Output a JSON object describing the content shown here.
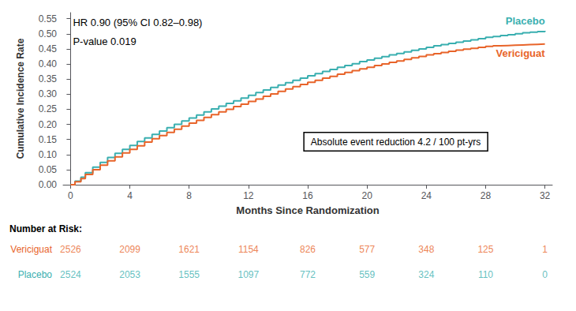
{
  "chart_data": {
    "type": "step",
    "xlabel": "Months Since Randomization",
    "ylabel": "Cumulative Incidence Rate",
    "xlim": [
      -0.5,
      32.5
    ],
    "ylim": [
      0.0,
      0.57
    ],
    "xticks": [
      0,
      4,
      8,
      12,
      16,
      20,
      24,
      28,
      32
    ],
    "yticks": [
      {
        "value": 0.0,
        "label": "0.00"
      },
      {
        "value": 0.05,
        "label": "0.05"
      },
      {
        "value": 0.1,
        "label": "0.10"
      },
      {
        "value": 0.15,
        "label": "0.15"
      },
      {
        "value": 0.2,
        "label": "0.20"
      },
      {
        "value": 0.25,
        "label": "0.25"
      },
      {
        "value": 0.3,
        "label": "0.30"
      },
      {
        "value": 0.35,
        "label": "0.35"
      },
      {
        "value": 0.4,
        "label": "0.40"
      },
      {
        "value": 0.45,
        "label": "0.45"
      },
      {
        "value": 0.5,
        "label": "0.50"
      },
      {
        "value": 0.55,
        "label": "0.55"
      }
    ],
    "grid": false,
    "annotations": [
      "HR 0.90 (95% CI 0.82–0.98)",
      "P-value 0.019",
      "Absolute event reduction 4.2 / 100 pt-yrs"
    ],
    "at_risk_label": "Number at Risk:",
    "at_risk_x": [
      0,
      4,
      8,
      12,
      16,
      20,
      24,
      28,
      32
    ],
    "series": [
      {
        "name": "Placebo",
        "color": "#3AAFB0",
        "x": [
          0.0,
          0.3,
          0.7,
          1.0,
          1.5,
          2.0,
          2.5,
          3.0,
          3.5,
          4.0,
          4.5,
          5.0,
          5.5,
          6.0,
          6.5,
          7.0,
          7.5,
          8.0,
          8.5,
          9.0,
          9.5,
          10.0,
          10.5,
          11.0,
          11.5,
          12.0,
          12.5,
          13.0,
          13.5,
          14.0,
          14.5,
          15.0,
          15.5,
          16.0,
          16.5,
          17.0,
          17.5,
          18.0,
          18.5,
          19.0,
          19.5,
          20.0,
          20.5,
          21.0,
          21.5,
          22.0,
          22.5,
          23.0,
          23.5,
          24.0,
          24.5,
          25.0,
          25.5,
          26.0,
          26.5,
          27.0,
          27.5,
          28.0,
          28.5,
          29.0,
          29.5,
          30.0,
          30.5,
          31.0,
          31.5,
          32.0
        ],
        "values": [
          0.0,
          0.012,
          0.025,
          0.04,
          0.058,
          0.074,
          0.09,
          0.104,
          0.117,
          0.13,
          0.143,
          0.155,
          0.167,
          0.178,
          0.189,
          0.2,
          0.211,
          0.221,
          0.231,
          0.241,
          0.251,
          0.26,
          0.269,
          0.278,
          0.287,
          0.296,
          0.305,
          0.314,
          0.322,
          0.33,
          0.338,
          0.346,
          0.353,
          0.361,
          0.368,
          0.375,
          0.382,
          0.389,
          0.395,
          0.401,
          0.408,
          0.413,
          0.419,
          0.424,
          0.43,
          0.435,
          0.44,
          0.445,
          0.45,
          0.455,
          0.46,
          0.464,
          0.468,
          0.472,
          0.476,
          0.48,
          0.484,
          0.488,
          0.491,
          0.494,
          0.497,
          0.5,
          0.503,
          0.505,
          0.507,
          0.51
        ],
        "at_risk": [
          2524,
          2053,
          1555,
          1097,
          772,
          559,
          324,
          110,
          0
        ]
      },
      {
        "name": "Vericiguat",
        "color": "#E8642A",
        "x": [
          0.0,
          0.3,
          0.7,
          1.0,
          1.5,
          2.0,
          2.5,
          3.0,
          3.5,
          4.0,
          4.5,
          5.0,
          5.5,
          6.0,
          6.5,
          7.0,
          7.5,
          8.0,
          8.5,
          9.0,
          9.5,
          10.0,
          10.5,
          11.0,
          11.5,
          12.0,
          12.5,
          13.0,
          13.5,
          14.0,
          14.5,
          15.0,
          15.5,
          16.0,
          16.5,
          17.0,
          17.5,
          18.0,
          18.5,
          19.0,
          19.5,
          20.0,
          20.5,
          21.0,
          21.5,
          22.0,
          22.5,
          23.0,
          23.5,
          24.0,
          24.5,
          25.0,
          25.5,
          26.0,
          26.5,
          27.0,
          27.5,
          28.0,
          28.5,
          29.0,
          29.5,
          30.0,
          30.5,
          31.0,
          31.5,
          32.0
        ],
        "values": [
          0.0,
          0.01,
          0.02,
          0.034,
          0.05,
          0.065,
          0.079,
          0.092,
          0.105,
          0.117,
          0.129,
          0.141,
          0.152,
          0.163,
          0.173,
          0.184,
          0.194,
          0.204,
          0.213,
          0.223,
          0.232,
          0.241,
          0.25,
          0.259,
          0.267,
          0.276,
          0.284,
          0.293,
          0.301,
          0.309,
          0.317,
          0.325,
          0.332,
          0.339,
          0.346,
          0.353,
          0.359,
          0.366,
          0.372,
          0.378,
          0.384,
          0.389,
          0.395,
          0.4,
          0.405,
          0.41,
          0.415,
          0.42,
          0.425,
          0.43,
          0.434,
          0.438,
          0.442,
          0.446,
          0.449,
          0.452,
          0.455,
          0.458,
          0.46,
          0.461,
          0.462,
          0.463,
          0.464,
          0.465,
          0.466,
          0.467
        ],
        "at_risk": [
          2526,
          2099,
          1621,
          1154,
          826,
          577,
          348,
          125,
          1
        ]
      }
    ]
  }
}
